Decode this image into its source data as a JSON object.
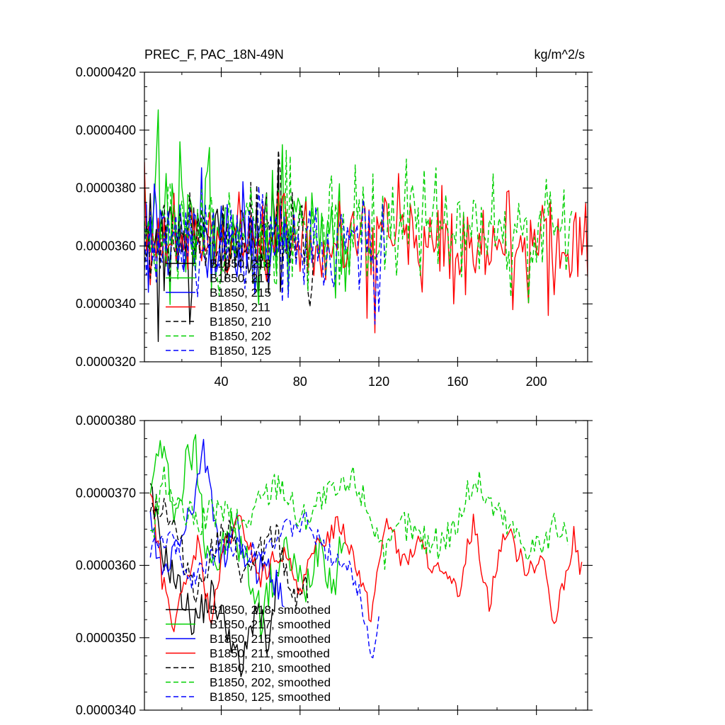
{
  "chart_data": [
    {
      "type": "line",
      "title_left": "PREC_F, PAC_18N-49N",
      "title_right": "kg/m^2/s",
      "xlim": [
        1,
        226
      ],
      "ylim": [
        3.2e-05,
        4.2e-05
      ],
      "x_ticks": [
        40,
        80,
        120,
        160,
        200
      ],
      "x_tick_labels": [
        "40",
        "80",
        "120",
        "160",
        "200"
      ],
      "y_ticks": [
        3.2e-05,
        3.4e-05,
        3.6e-05,
        3.8e-05,
        4e-05,
        4.2e-05
      ],
      "y_tick_labels": [
        "0.0000320",
        "0.0000340",
        "0.0000360",
        "0.0000380",
        "0.0000400",
        "0.0000420"
      ],
      "legend_position": "bottom-left inside",
      "series": [
        {
          "name": "B1850, 218",
          "color": "#000000",
          "dash": "solid",
          "start": 1,
          "end": 72,
          "mean": 3.62e-05,
          "amp": 1.1e-06,
          "seed": 11,
          "spikes": [
            [
              8,
              3.27e-05
            ],
            [
              24,
              3.33e-05
            ],
            [
              43,
              3.5e-05
            ],
            [
              69,
              3.9e-05
            ]
          ]
        },
        {
          "name": "B1850, 217",
          "color": "#00d000",
          "dash": "solid",
          "start": 1,
          "end": 106,
          "mean": 3.65e-05,
          "amp": 1.3e-06,
          "seed": 23,
          "spikes": [
            [
              8,
              4.07e-05
            ],
            [
              12,
              3.85e-05
            ],
            [
              19,
              3.96e-05
            ],
            [
              34,
              3.94e-05
            ],
            [
              71,
              3.95e-05
            ],
            [
              98,
              3.42e-05
            ]
          ]
        },
        {
          "name": "B1850, 215",
          "color": "#0000ff",
          "dash": "solid",
          "start": 1,
          "end": 75,
          "mean": 3.62e-05,
          "amp": 1.1e-06,
          "seed": 37,
          "spikes": [
            [
              30,
              3.87e-05
            ],
            [
              35,
              3.48e-05
            ],
            [
              3,
              3.44e-05
            ]
          ]
        },
        {
          "name": "B1850, 211",
          "color": "#ff0000",
          "dash": "solid",
          "start": 1,
          "end": 226,
          "mean": 3.61e-05,
          "amp": 1e-06,
          "seed": 41,
          "spikes": [
            [
              1,
              3.89e-05
            ],
            [
              118,
              3.3e-05
            ],
            [
              114,
              3.35e-05
            ],
            [
              206,
              3.36e-05
            ],
            [
              188,
              3.38e-05
            ],
            [
              130,
              3.85e-05
            ]
          ]
        },
        {
          "name": "B1850, 210",
          "color": "#000000",
          "dash": "dashed",
          "start": 1,
          "end": 87,
          "mean": 3.62e-05,
          "amp": 1e-06,
          "seed": 53,
          "spikes": [
            [
              69,
              3.93e-05
            ],
            [
              70,
              3.85e-05
            ],
            [
              60,
              3.52e-05
            ],
            [
              85,
              3.39e-05
            ]
          ]
        },
        {
          "name": "B1850, 202",
          "color": "#00d000",
          "dash": "dashed",
          "start": 1,
          "end": 218,
          "mean": 3.65e-05,
          "amp": 1.1e-06,
          "seed": 67,
          "spikes": [
            [
              75,
              3.91e-05
            ],
            [
              73,
              3.93e-05
            ],
            [
              108,
              3.88e-05
            ],
            [
              134,
              3.9e-05
            ],
            [
              178,
              3.85e-05
            ],
            [
              196,
              3.4e-05
            ],
            [
              205,
              3.83e-05
            ]
          ]
        },
        {
          "name": "B1850, 125",
          "color": "#0000ff",
          "dash": "dashed",
          "start": 1,
          "end": 123,
          "mean": 3.61e-05,
          "amp": 1e-06,
          "seed": 79,
          "spikes": [
            [
              118,
              3.33e-05
            ],
            [
              120,
              3.37e-05
            ],
            [
              110,
              3.45e-05
            ]
          ]
        }
      ]
    },
    {
      "type": "line",
      "xlim": [
        1,
        226
      ],
      "ylim": [
        3.4e-05,
        3.8e-05
      ],
      "x_ticks": [
        40,
        80,
        120,
        160,
        200
      ],
      "x_tick_labels": [],
      "y_ticks": [
        3.4e-05,
        3.5e-05,
        3.6e-05,
        3.7e-05,
        3.8e-05
      ],
      "y_tick_labels": [
        "0.0000340",
        "0.0000350",
        "0.0000360",
        "0.0000370",
        "0.0000380"
      ],
      "legend_position": "bottom-left inside",
      "series": [
        {
          "name": "B1850, 218, smoothed",
          "color": "#000000",
          "dash": "solid",
          "start": 4,
          "end": 69,
          "mean": 3.58e-05,
          "amp": 3e-07,
          "seed": 91,
          "knots": [
            [
              4,
              3.7e-05
            ],
            [
              10,
              3.62e-05
            ],
            [
              20,
              3.56e-05
            ],
            [
              26,
              3.52e-05
            ],
            [
              35,
              3.56e-05
            ],
            [
              44,
              3.51e-05
            ],
            [
              50,
              3.45e-05
            ],
            [
              58,
              3.55e-05
            ],
            [
              64,
              3.48e-05
            ],
            [
              69,
              3.59e-05
            ]
          ]
        },
        {
          "name": "B1850, 217, smoothed",
          "color": "#00d000",
          "dash": "solid",
          "start": 4,
          "end": 103,
          "mean": 3.62e-05,
          "amp": 4e-07,
          "seed": 97,
          "knots": [
            [
              4,
              3.68e-05
            ],
            [
              8,
              3.77e-05
            ],
            [
              13,
              3.72e-05
            ],
            [
              18,
              3.67e-05
            ],
            [
              22,
              3.74e-05
            ],
            [
              27,
              3.76e-05
            ],
            [
              32,
              3.64e-05
            ],
            [
              38,
              3.6e-05
            ],
            [
              45,
              3.65e-05
            ],
            [
              52,
              3.61e-05
            ],
            [
              60,
              3.53e-05
            ],
            [
              66,
              3.58e-05
            ],
            [
              74,
              3.62e-05
            ],
            [
              82,
              3.56e-05
            ],
            [
              90,
              3.64e-05
            ],
            [
              97,
              3.57e-05
            ],
            [
              103,
              3.66e-05
            ]
          ]
        },
        {
          "name": "B1850, 215, smoothed",
          "color": "#0000ff",
          "dash": "solid",
          "start": 4,
          "end": 72,
          "mean": 3.6e-05,
          "amp": 3e-07,
          "seed": 103,
          "knots": [
            [
              4,
              3.66e-05
            ],
            [
              10,
              3.58e-05
            ],
            [
              16,
              3.62e-05
            ],
            [
              22,
              3.66e-05
            ],
            [
              27,
              3.69e-05
            ],
            [
              30,
              3.76e-05
            ],
            [
              34,
              3.72e-05
            ],
            [
              40,
              3.6e-05
            ],
            [
              48,
              3.65e-05
            ],
            [
              55,
              3.59e-05
            ],
            [
              62,
              3.61e-05
            ],
            [
              68,
              3.57e-05
            ],
            [
              72,
              3.56e-05
            ]
          ]
        },
        {
          "name": "B1850, 211, smoothed",
          "color": "#ff0000",
          "dash": "solid",
          "start": 4,
          "end": 223,
          "mean": 3.6e-05,
          "amp": 2e-07,
          "seed": 107,
          "knots": [
            [
              4,
              3.71e-05
            ],
            [
              10,
              3.58e-05
            ],
            [
              16,
              3.52e-05
            ],
            [
              22,
              3.57e-05
            ],
            [
              28,
              3.63e-05
            ],
            [
              35,
              3.52e-05
            ],
            [
              42,
              3.63e-05
            ],
            [
              50,
              3.66e-05
            ],
            [
              60,
              3.58e-05
            ],
            [
              70,
              3.62e-05
            ],
            [
              80,
              3.57e-05
            ],
            [
              90,
              3.63e-05
            ],
            [
              100,
              3.66e-05
            ],
            [
              108,
              3.61e-05
            ],
            [
              116,
              3.53e-05
            ],
            [
              124,
              3.67e-05
            ],
            [
              132,
              3.6e-05
            ],
            [
              140,
              3.63e-05
            ],
            [
              150,
              3.59e-05
            ],
            [
              160,
              3.56e-05
            ],
            [
              168,
              3.66e-05
            ],
            [
              176,
              3.55e-05
            ],
            [
              184,
              3.65e-05
            ],
            [
              194,
              3.6e-05
            ],
            [
              204,
              3.61e-05
            ],
            [
              208,
              3.51e-05
            ],
            [
              214,
              3.57e-05
            ],
            [
              219,
              3.64e-05
            ],
            [
              223,
              3.59e-05
            ]
          ]
        },
        {
          "name": "B1850, 210, smoothed",
          "color": "#000000",
          "dash": "dashed",
          "start": 4,
          "end": 84,
          "mean": 3.62e-05,
          "amp": 3e-07,
          "seed": 113,
          "knots": [
            [
              4,
              3.69e-05
            ],
            [
              12,
              3.68e-05
            ],
            [
              20,
              3.62e-05
            ],
            [
              28,
              3.56e-05
            ],
            [
              36,
              3.63e-05
            ],
            [
              44,
              3.64e-05
            ],
            [
              52,
              3.58e-05
            ],
            [
              60,
              3.62e-05
            ],
            [
              68,
              3.64e-05
            ],
            [
              76,
              3.56e-05
            ],
            [
              84,
              3.57e-05
            ]
          ]
        },
        {
          "name": "B1850, 202, smoothed",
          "color": "#00d000",
          "dash": "dashed",
          "start": 4,
          "end": 216,
          "mean": 3.65e-05,
          "amp": 3e-07,
          "seed": 127,
          "knots": [
            [
              4,
              3.63e-05
            ],
            [
              10,
              3.72e-05
            ],
            [
              20,
              3.67e-05
            ],
            [
              30,
              3.66e-05
            ],
            [
              40,
              3.68e-05
            ],
            [
              50,
              3.65e-05
            ],
            [
              60,
              3.69e-05
            ],
            [
              70,
              3.72e-05
            ],
            [
              80,
              3.66e-05
            ],
            [
              90,
              3.69e-05
            ],
            [
              100,
              3.7e-05
            ],
            [
              108,
              3.72e-05
            ],
            [
              116,
              3.67e-05
            ],
            [
              124,
              3.61e-05
            ],
            [
              132,
              3.66e-05
            ],
            [
              140,
              3.64e-05
            ],
            [
              150,
              3.63e-05
            ],
            [
              160,
              3.66e-05
            ],
            [
              168,
              3.72e-05
            ],
            [
              176,
              3.69e-05
            ],
            [
              184,
              3.66e-05
            ],
            [
              194,
              3.63e-05
            ],
            [
              204,
              3.63e-05
            ],
            [
              212,
              3.66e-05
            ],
            [
              216,
              3.62e-05
            ]
          ]
        },
        {
          "name": "B1850, 125, smoothed",
          "color": "#0000ff",
          "dash": "dashed",
          "start": 4,
          "end": 120,
          "mean": 3.61e-05,
          "amp": 2e-07,
          "seed": 131,
          "knots": [
            [
              4,
              3.62e-05
            ],
            [
              14,
              3.64e-05
            ],
            [
              24,
              3.58e-05
            ],
            [
              34,
              3.61e-05
            ],
            [
              44,
              3.63e-05
            ],
            [
              54,
              3.62e-05
            ],
            [
              64,
              3.63e-05
            ],
            [
              74,
              3.65e-05
            ],
            [
              84,
              3.66e-05
            ],
            [
              92,
              3.62e-05
            ],
            [
              100,
              3.61e-05
            ],
            [
              108,
              3.58e-05
            ],
            [
              114,
              3.52e-05
            ],
            [
              117,
              3.47e-05
            ],
            [
              120,
              3.53e-05
            ]
          ]
        }
      ]
    }
  ]
}
